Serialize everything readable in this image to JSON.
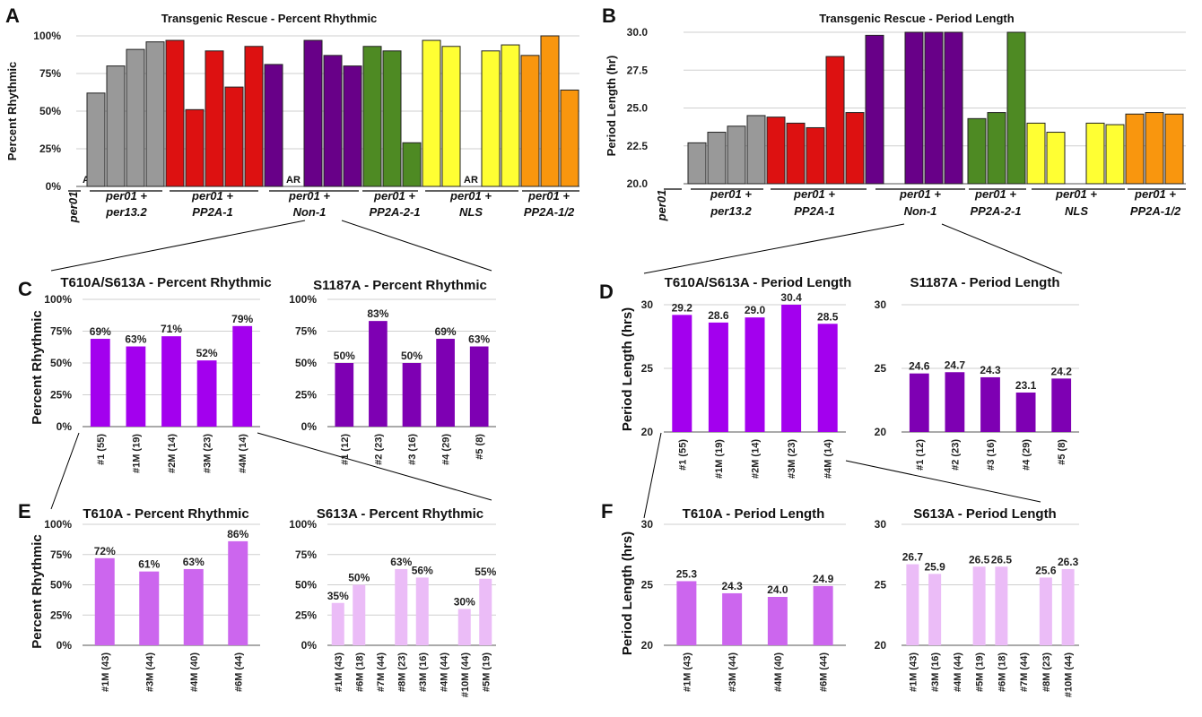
{
  "chart_data": [
    {
      "panel": "A",
      "type": "bar",
      "title": "Transgenic Rescue - Percent Rhythmic",
      "ylabel": "Percent Rhythmic",
      "ylim": [
        0,
        100
      ],
      "yticks": [
        "0%",
        "25%",
        "50%",
        "75%",
        "100%"
      ],
      "groups": [
        {
          "label": [
            "per01"
          ],
          "color": "#999999",
          "values": [
            0
          ],
          "ar": [
            0
          ]
        },
        {
          "label": [
            "per01 +",
            "per13.2"
          ],
          "color": "#999999",
          "values": [
            62,
            80,
            91,
            96
          ]
        },
        {
          "label": [
            "per01 +",
            "PP2A-1"
          ],
          "color": "#dd1111",
          "values": [
            97,
            51,
            90,
            66,
            93
          ]
        },
        {
          "label": [
            "per01 +",
            "Non-1"
          ],
          "color": "#680088",
          "values": [
            81,
            0,
            97,
            87,
            80
          ],
          "ar": [
            1
          ]
        },
        {
          "label": [
            "per01 +",
            "PP2A-2-1"
          ],
          "color": "#4e8a23",
          "values": [
            93,
            90,
            29
          ]
        },
        {
          "label": [
            "per01 +",
            "NLS"
          ],
          "color": "#ffff33",
          "values": [
            97,
            93,
            0,
            90,
            94
          ],
          "ar": [
            2
          ]
        },
        {
          "label": [
            "per01 +",
            "PP2A-1/2"
          ],
          "color": "#f9960e",
          "values": [
            87,
            100,
            64
          ]
        }
      ],
      "ar_label": "AR"
    },
    {
      "panel": "B",
      "type": "bar",
      "title": "Transgenic Rescue - Period Length",
      "ylabel": "Period Length (hr)",
      "ylim": [
        20,
        30
      ],
      "yticks": [
        "20.0",
        "22.5",
        "25.0",
        "27.5",
        "30.0"
      ],
      "groups": [
        {
          "label": [
            "per01"
          ],
          "color": "#999999",
          "values": [
            20
          ]
        },
        {
          "label": [
            "per01 +",
            "per13.2"
          ],
          "color": "#999999",
          "values": [
            22.7,
            23.4,
            23.8,
            24.5
          ]
        },
        {
          "label": [
            "per01 +",
            "PP2A-1"
          ],
          "color": "#dd1111",
          "values": [
            24.4,
            24.0,
            23.7,
            28.4,
            24.7
          ]
        },
        {
          "label": [
            "per01 +",
            "Non-1"
          ],
          "color": "#680088",
          "values": [
            29.8,
            20,
            30,
            30,
            30
          ]
        },
        {
          "label": [
            "per01 +",
            "PP2A-2-1"
          ],
          "color": "#4e8a23",
          "values": [
            24.3,
            24.7,
            30
          ]
        },
        {
          "label": [
            "per01 +",
            "NLS"
          ],
          "color": "#ffff33",
          "values": [
            24.0,
            23.4,
            20,
            24.0,
            23.9
          ]
        },
        {
          "label": [
            "per01 +",
            "PP2A-1/2"
          ],
          "color": "#f9960e",
          "values": [
            24.6,
            24.7,
            24.6
          ]
        }
      ]
    },
    {
      "panel": "C",
      "type": "bar",
      "title": "T610A/S613A - Percent Rhythmic",
      "ylabel": "Percent Rhythmic",
      "ylim": [
        0,
        100
      ],
      "yticks": [
        "0%",
        "25%",
        "50%",
        "75%",
        "100%"
      ],
      "color": "#a300ee",
      "categories": [
        "#1 (55)",
        "#1M (19)",
        "#2M (14)",
        "#3M (23)",
        "#4M (14)"
      ],
      "values": [
        69,
        63,
        71,
        52,
        79
      ],
      "labels": [
        "69%",
        "63%",
        "71%",
        "52%",
        "79%"
      ]
    },
    {
      "panel": "C2",
      "type": "bar",
      "title": "S1187A - Percent Rhythmic",
      "ylim": [
        0,
        100
      ],
      "yticks": [
        "0%",
        "25%",
        "50%",
        "75%",
        "100%"
      ],
      "color": "#7e00b3",
      "categories": [
        "#1 (12)",
        "#2 (23)",
        "#3 (16)",
        "#4 (29)",
        "#5 (8)"
      ],
      "values": [
        50,
        83,
        50,
        69,
        63
      ],
      "labels": [
        "50%",
        "83%",
        "50%",
        "69%",
        "63%"
      ]
    },
    {
      "panel": "D",
      "type": "bar",
      "title": "T610A/S613A - Period Length",
      "ylabel": "Period Length (hrs)",
      "ylim": [
        20,
        30
      ],
      "yticks": [
        "20",
        "25",
        "30"
      ],
      "color": "#a300ee",
      "categories": [
        "#1 (55)",
        "#1M (19)",
        "#2M (14)",
        "#3M (23)",
        "#4M (14)"
      ],
      "values": [
        29.2,
        28.6,
        29.0,
        30.4,
        28.5
      ],
      "labels": [
        "29.2",
        "28.6",
        "29.0",
        "30.4",
        "28.5"
      ]
    },
    {
      "panel": "D2",
      "type": "bar",
      "title": "S1187A - Period Length",
      "ylim": [
        20,
        30
      ],
      "yticks": [
        "20",
        "25",
        "30"
      ],
      "color": "#7e00b3",
      "categories": [
        "#1 (12)",
        "#2 (23)",
        "#3 (16)",
        "#4 (29)",
        "#5 (8)"
      ],
      "values": [
        24.6,
        24.7,
        24.3,
        23.1,
        24.2
      ],
      "labels": [
        "24.6",
        "24.7",
        "24.3",
        "23.1",
        "24.2"
      ]
    },
    {
      "panel": "E",
      "type": "bar",
      "title": "T610A - Percent Rhythmic",
      "ylabel": "Percent Rhythmic",
      "ylim": [
        0,
        100
      ],
      "yticks": [
        "0%",
        "25%",
        "50%",
        "75%",
        "100%"
      ],
      "color": "#cc66ee",
      "categories": [
        "#1M (43)",
        "#3M (44)",
        "#4M (40)",
        "#6M (44)"
      ],
      "values": [
        72,
        61,
        63,
        86
      ],
      "labels": [
        "72%",
        "61%",
        "63%",
        "86%"
      ]
    },
    {
      "panel": "E2",
      "type": "bar",
      "title": "S613A - Percent Rhythmic",
      "ylim": [
        0,
        100
      ],
      "yticks": [
        "0%",
        "25%",
        "50%",
        "75%",
        "100%"
      ],
      "color": "#ebbcf7",
      "categories": [
        "#1M (43)",
        "#6M (18)",
        "#7M (44)",
        "#8M (23)",
        "#3M (16)",
        "#4M (44)",
        "#10M (44)",
        "#5M (19)"
      ],
      "values": [
        35,
        50,
        null,
        63,
        56,
        null,
        30,
        55
      ],
      "labels": [
        "35%",
        "50%",
        "",
        "63%",
        "56%",
        "",
        "30%",
        "55%"
      ]
    },
    {
      "panel": "F",
      "type": "bar",
      "title": "T610A - Period Length",
      "ylabel": "Period Length (hrs)",
      "ylim": [
        20,
        30
      ],
      "yticks": [
        "20",
        "25",
        "30"
      ],
      "color": "#cc66ee",
      "categories": [
        "#1M (43)",
        "#3M (44)",
        "#4M (40)",
        "#6M (44)"
      ],
      "values": [
        25.3,
        24.3,
        24.0,
        24.9
      ],
      "labels": [
        "25.3",
        "24.3",
        "24.0",
        "24.9"
      ]
    },
    {
      "panel": "F2",
      "type": "bar",
      "title": "S613A - Period Length",
      "ylim": [
        20,
        30
      ],
      "yticks": [
        "20",
        "25",
        "30"
      ],
      "color": "#ebbcf7",
      "categories": [
        "#1M (43)",
        "#3M (16)",
        "#4M (44)",
        "#5M (19)",
        "#6M (18)",
        "#7M (44)",
        "#8M (23)",
        "#10M (44)"
      ],
      "values": [
        26.7,
        25.9,
        null,
        26.5,
        26.5,
        null,
        25.6,
        26.3
      ],
      "labels": [
        "26.7",
        "25.9",
        "",
        "26.5",
        "26.5",
        "",
        "25.6",
        "26.3"
      ]
    }
  ],
  "panel_letters": [
    "A",
    "B",
    "C",
    "D",
    "E",
    "F"
  ]
}
